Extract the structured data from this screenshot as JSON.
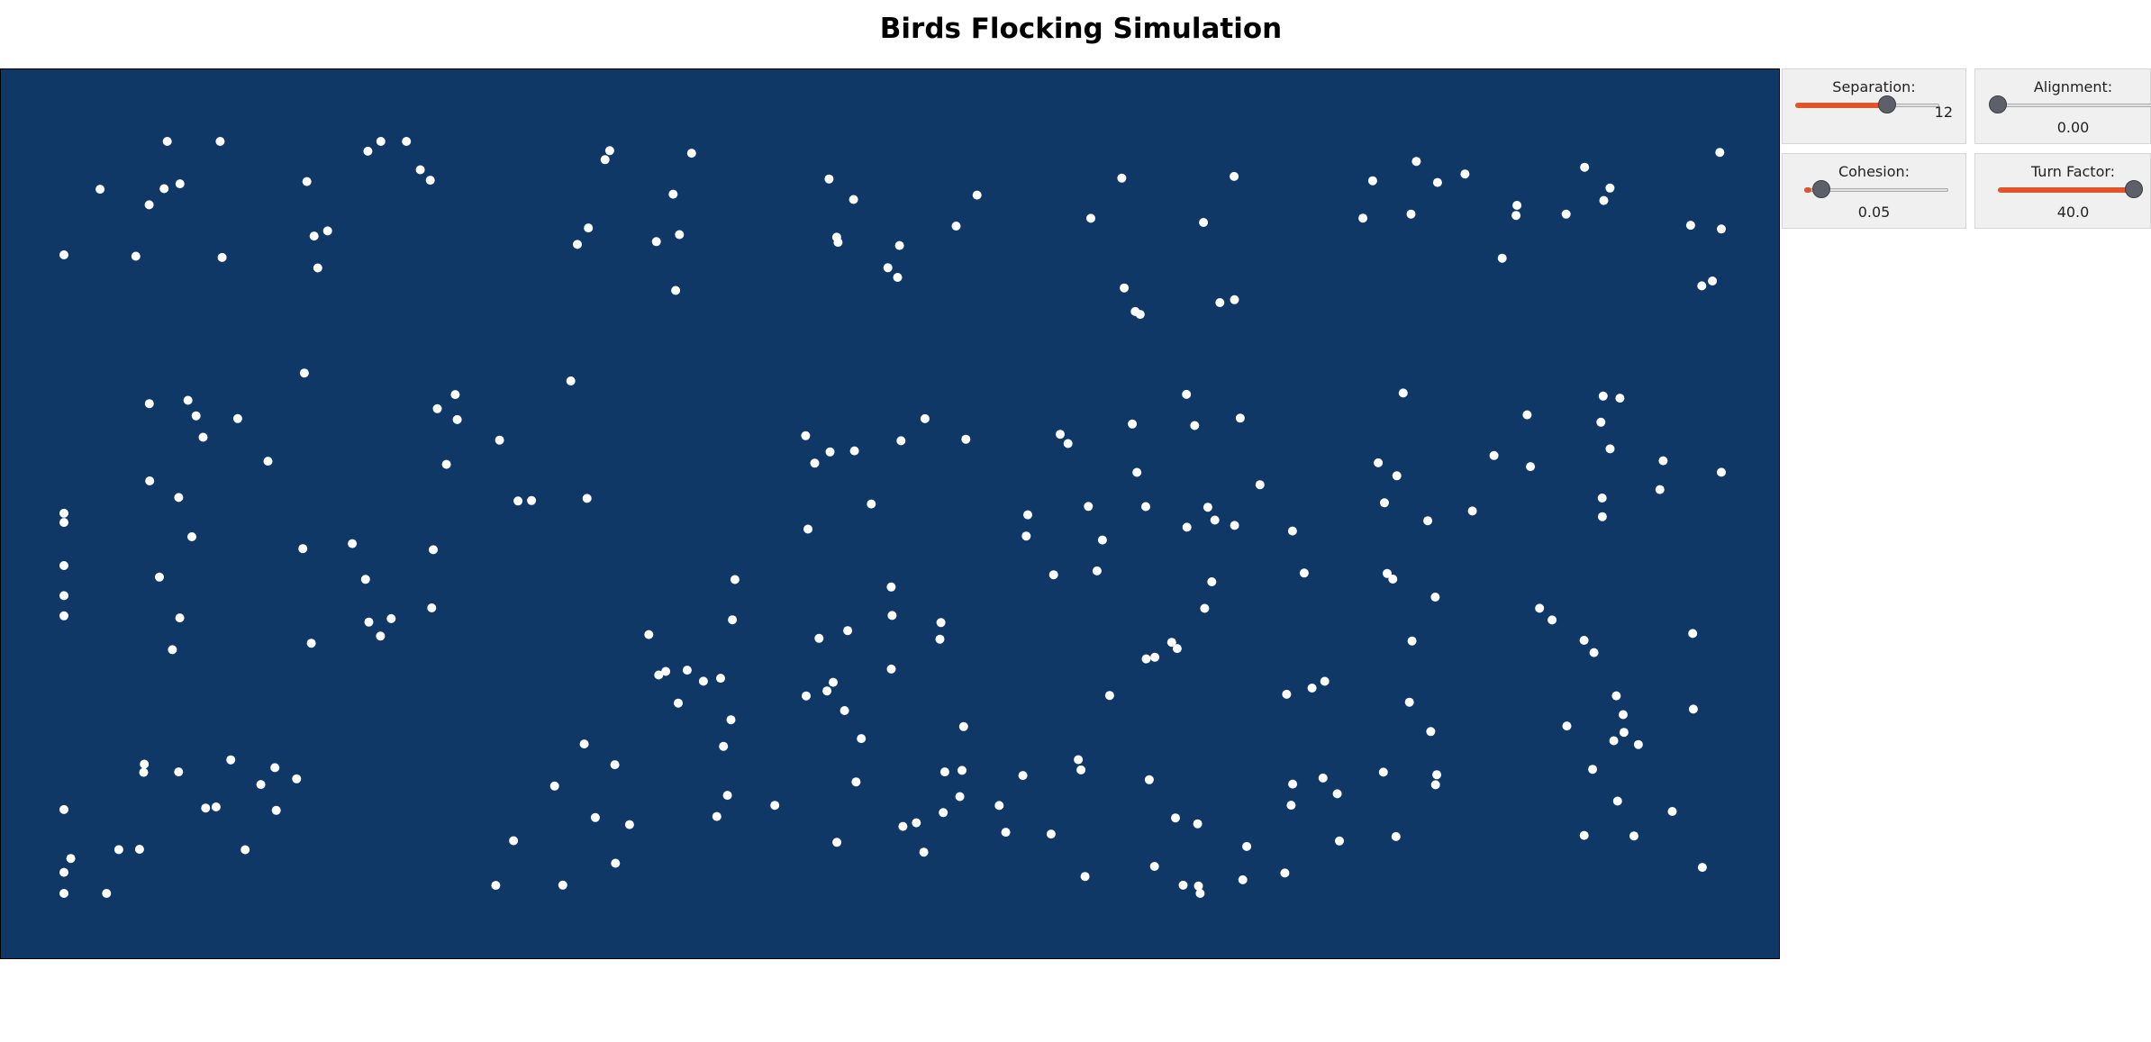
{
  "page": {
    "title": "Birds Flocking Simulation"
  },
  "colors": {
    "canvas_background": "#0f3866",
    "bird": "#ffffff",
    "slider_fill": "#e0562a",
    "slider_thumb": "#5d6068"
  },
  "controls": {
    "separation": {
      "label": "Separation:",
      "value": "12",
      "level": 0.6
    },
    "alignment": {
      "label": "Alignment:",
      "value": "0.00",
      "level": 0.0
    },
    "cohesion": {
      "label": "Cohesion:",
      "value": "0.05",
      "level": 0.05
    },
    "turn_factor": {
      "label": "Turn Factor:",
      "value": "40.0",
      "level": 1.0
    }
  },
  "flock": {
    "bird_count": 270
  }
}
